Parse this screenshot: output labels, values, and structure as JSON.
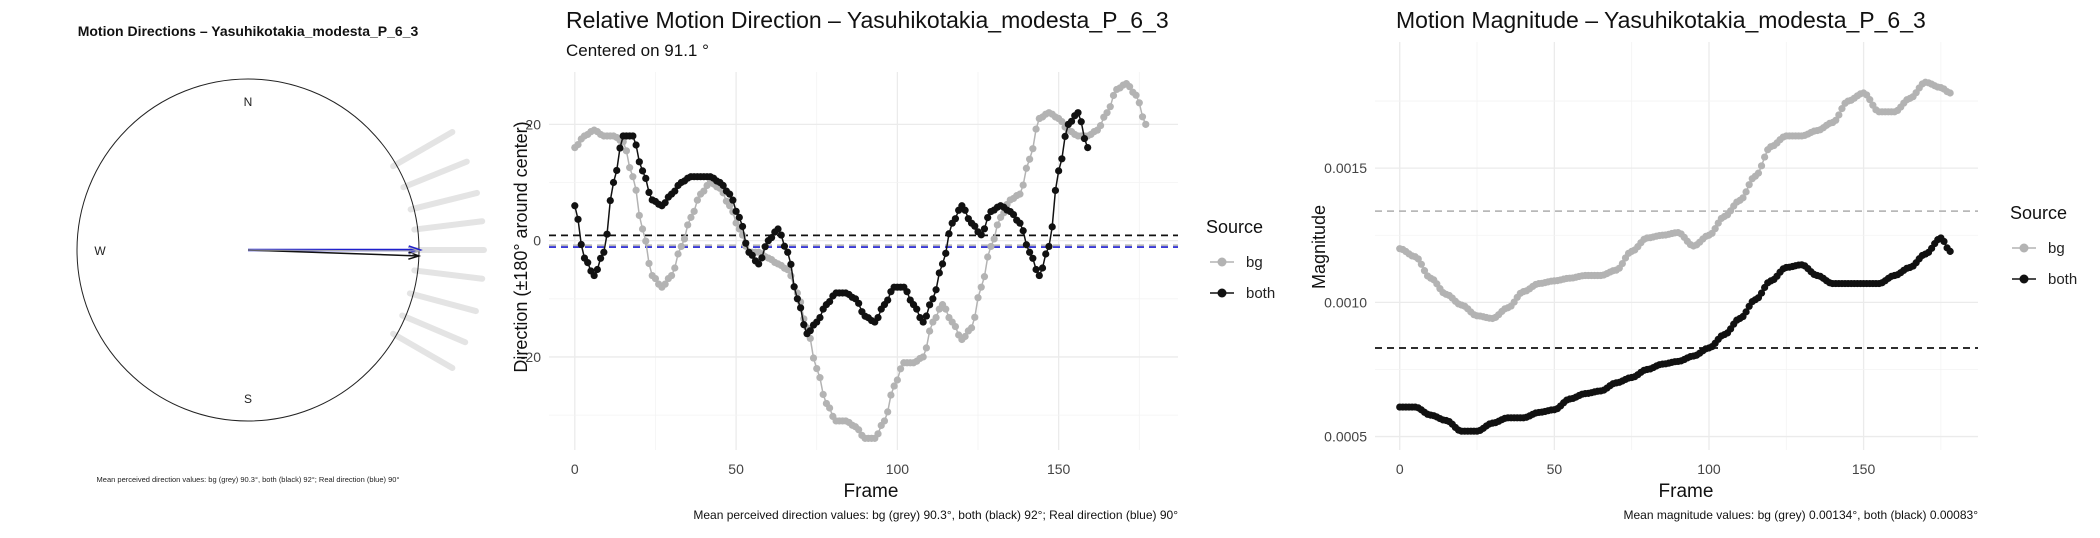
{
  "colors": {
    "bg": "#b3b3b3",
    "both": "#111111",
    "real": "#1f1fcc",
    "grid": "#ebebeb",
    "mean_bg": "#b8b8b8",
    "mean_both": "#111111",
    "mean_real": "#3a3ad6"
  },
  "panel1": {
    "title": "Motion Directions – Yasuhikotakia_modesta_P_6_3",
    "north": "N",
    "south": "S",
    "west": "W",
    "caption": "Mean perceived direction values: bg (grey) 90.3°, both (black) 92°; Real direction (blue) 90°"
  },
  "panel2": {
    "title": "Relative Motion Direction – Yasuhikotakia_modesta_P_6_3",
    "subtitle": "Centered on  91.1 °",
    "caption": "Mean perceived direction values: bg (grey) 90.3°, both (black) 92°; Real direction (blue) 90°",
    "legend_title": "Source",
    "legend_items": [
      "bg",
      "both"
    ]
  },
  "panel3": {
    "title": "Motion Magnitude – Yasuhikotakia_modesta_P_6_3",
    "caption": "Mean magnitude values: bg (grey) 0.00134°, both (black) 0.00083°",
    "legend_title": "Source",
    "legend_items": [
      "bg",
      "both"
    ]
  },
  "chart_data": [
    {
      "type": "polar",
      "title": "Motion Directions – Yasuhikotakia_modesta_P_6_3",
      "compass": [
        "N",
        "S",
        "W"
      ],
      "arrows_deg": {
        "bg": 90.3,
        "both": 92,
        "real": 90
      },
      "bg_ray_directions_deg": [
        60,
        68,
        76,
        83,
        90,
        97,
        105,
        113,
        120
      ]
    },
    {
      "type": "line",
      "title": "Relative Motion Direction – Yasuhikotakia_modesta_P_6_3",
      "subtitle": "Centered on  91.1 °",
      "xlabel": "Frame",
      "ylabel": "Direction (±180° around center)",
      "xlim": [
        -8,
        187
      ],
      "ylim": [
        -36,
        29
      ],
      "xticks": [
        0,
        50,
        100,
        150
      ],
      "yticks": [
        -20,
        0,
        20
      ],
      "grid": true,
      "legend": "right",
      "mean_lines": {
        "both": 0.9,
        "bg": -0.8,
        "real": -1.1
      },
      "series": [
        {
          "name": "bg",
          "knots": [
            [
              0,
              16
            ],
            [
              3,
              18
            ],
            [
              6,
              19
            ],
            [
              9,
              18
            ],
            [
              12,
              18
            ],
            [
              15,
              17
            ],
            [
              18,
              11
            ],
            [
              21,
              2
            ],
            [
              24,
              -6
            ],
            [
              27,
              -8
            ],
            [
              30,
              -6
            ],
            [
              33,
              -1
            ],
            [
              36,
              4
            ],
            [
              39,
              8
            ],
            [
              42,
              10
            ],
            [
              45,
              9
            ],
            [
              48,
              6
            ],
            [
              51,
              2
            ],
            [
              54,
              -2
            ],
            [
              57,
              -2
            ],
            [
              60,
              -3
            ],
            [
              63,
              -4
            ],
            [
              66,
              -5
            ],
            [
              69,
              -9
            ],
            [
              72,
              -15
            ],
            [
              75,
              -22
            ],
            [
              78,
              -28
            ],
            [
              81,
              -31
            ],
            [
              84,
              -31
            ],
            [
              87,
              -32
            ],
            [
              90,
              -34
            ],
            [
              93,
              -34
            ],
            [
              96,
              -31
            ],
            [
              99,
              -25
            ],
            [
              102,
              -21
            ],
            [
              105,
              -21
            ],
            [
              108,
              -20
            ],
            [
              111,
              -14
            ],
            [
              114,
              -11
            ],
            [
              117,
              -14
            ],
            [
              120,
              -17
            ],
            [
              123,
              -15
            ],
            [
              126,
              -8
            ],
            [
              129,
              -1
            ],
            [
              132,
              4
            ],
            [
              135,
              7
            ],
            [
              138,
              8
            ],
            [
              141,
              14
            ],
            [
              144,
              21
            ],
            [
              147,
              22
            ],
            [
              150,
              21
            ],
            [
              153,
              19
            ],
            [
              156,
              18
            ],
            [
              159,
              18
            ],
            [
              162,
              19
            ],
            [
              165,
              22
            ],
            [
              168,
              26
            ],
            [
              171,
              27
            ],
            [
              174,
              25
            ],
            [
              177,
              20
            ]
          ]
        },
        {
          "name": "both",
          "knots": [
            [
              0,
              6
            ],
            [
              3,
              -3
            ],
            [
              6,
              -6
            ],
            [
              9,
              -2
            ],
            [
              12,
              10
            ],
            [
              15,
              18
            ],
            [
              18,
              18
            ],
            [
              21,
              12
            ],
            [
              24,
              7
            ],
            [
              27,
              6
            ],
            [
              30,
              8
            ],
            [
              33,
              10
            ],
            [
              36,
              11
            ],
            [
              39,
              11
            ],
            [
              42,
              11
            ],
            [
              45,
              10
            ],
            [
              48,
              8
            ],
            [
              51,
              4
            ],
            [
              54,
              -2
            ],
            [
              57,
              -4
            ],
            [
              60,
              0
            ],
            [
              63,
              2
            ],
            [
              66,
              -2
            ],
            [
              69,
              -10
            ],
            [
              72,
              -16
            ],
            [
              75,
              -14
            ],
            [
              78,
              -11
            ],
            [
              81,
              -9
            ],
            [
              84,
              -9
            ],
            [
              87,
              -10
            ],
            [
              90,
              -13
            ],
            [
              93,
              -14
            ],
            [
              96,
              -11
            ],
            [
              99,
              -8
            ],
            [
              102,
              -8
            ],
            [
              105,
              -11
            ],
            [
              108,
              -14
            ],
            [
              111,
              -10
            ],
            [
              114,
              -4
            ],
            [
              117,
              3
            ],
            [
              120,
              6
            ],
            [
              123,
              3
            ],
            [
              126,
              1
            ],
            [
              129,
              5
            ],
            [
              132,
              6
            ],
            [
              135,
              5
            ],
            [
              138,
              3
            ],
            [
              141,
              -2
            ],
            [
              144,
              -6
            ],
            [
              147,
              -1
            ],
            [
              150,
              12
            ],
            [
              153,
              20
            ],
            [
              156,
              22
            ],
            [
              159,
              16
            ]
          ]
        }
      ],
      "caption": "Mean perceived direction values: bg (grey) 90.3°, both (black) 92°; Real direction (blue) 90°"
    },
    {
      "type": "line",
      "title": "Motion Magnitude – Yasuhikotakia_modesta_P_6_3",
      "xlabel": "Frame",
      "ylabel": "Magnitude",
      "xlim": [
        -8,
        187
      ],
      "ylim": [
        0.00045,
        0.00197
      ],
      "xticks": [
        0,
        50,
        100,
        150
      ],
      "yticks": [
        0.0005,
        0.001,
        0.0015
      ],
      "grid": true,
      "legend": "right",
      "mean_lines": {
        "bg": 0.00134,
        "both": 0.00083
      },
      "series": [
        {
          "name": "bg",
          "knots": [
            [
              0,
              0.0012
            ],
            [
              5,
              0.00117
            ],
            [
              10,
              0.00109
            ],
            [
              15,
              0.00103
            ],
            [
              20,
              0.00099
            ],
            [
              25,
              0.00095
            ],
            [
              30,
              0.00094
            ],
            [
              35,
              0.00098
            ],
            [
              40,
              0.00104
            ],
            [
              45,
              0.00107
            ],
            [
              50,
              0.00108
            ],
            [
              55,
              0.00109
            ],
            [
              60,
              0.0011
            ],
            [
              65,
              0.0011
            ],
            [
              70,
              0.00112
            ],
            [
              75,
              0.00119
            ],
            [
              80,
              0.00124
            ],
            [
              85,
              0.00125
            ],
            [
              90,
              0.00126
            ],
            [
              95,
              0.00121
            ],
            [
              100,
              0.00125
            ],
            [
              105,
              0.00132
            ],
            [
              110,
              0.00138
            ],
            [
              115,
              0.00147
            ],
            [
              120,
              0.00158
            ],
            [
              125,
              0.00162
            ],
            [
              130,
              0.00162
            ],
            [
              135,
              0.00164
            ],
            [
              140,
              0.00167
            ],
            [
              145,
              0.00175
            ],
            [
              150,
              0.00178
            ],
            [
              155,
              0.00171
            ],
            [
              160,
              0.00171
            ],
            [
              165,
              0.00176
            ],
            [
              170,
              0.00182
            ],
            [
              175,
              0.0018
            ],
            [
              178,
              0.00178
            ]
          ]
        },
        {
          "name": "both",
          "knots": [
            [
              0,
              0.00061
            ],
            [
              5,
              0.00061
            ],
            [
              10,
              0.00058
            ],
            [
              15,
              0.00056
            ],
            [
              20,
              0.00052
            ],
            [
              25,
              0.00052
            ],
            [
              30,
              0.00055
            ],
            [
              35,
              0.00057
            ],
            [
              40,
              0.00057
            ],
            [
              45,
              0.00059
            ],
            [
              50,
              0.0006
            ],
            [
              55,
              0.00064
            ],
            [
              60,
              0.00066
            ],
            [
              65,
              0.00067
            ],
            [
              70,
              0.0007
            ],
            [
              75,
              0.00072
            ],
            [
              80,
              0.00075
            ],
            [
              85,
              0.00077
            ],
            [
              90,
              0.00078
            ],
            [
              95,
              0.0008
            ],
            [
              100,
              0.00083
            ],
            [
              105,
              0.00088
            ],
            [
              110,
              0.00094
            ],
            [
              115,
              0.00101
            ],
            [
              120,
              0.00108
            ],
            [
              125,
              0.00113
            ],
            [
              130,
              0.00114
            ],
            [
              135,
              0.0011
            ],
            [
              140,
              0.00107
            ],
            [
              145,
              0.00107
            ],
            [
              150,
              0.00107
            ],
            [
              155,
              0.00107
            ],
            [
              160,
              0.0011
            ],
            [
              165,
              0.00113
            ],
            [
              170,
              0.00118
            ],
            [
              175,
              0.00124
            ],
            [
              178,
              0.00119
            ]
          ]
        }
      ],
      "caption": "Mean magnitude values: bg (grey) 0.00134°, both (black) 0.00083°"
    }
  ]
}
